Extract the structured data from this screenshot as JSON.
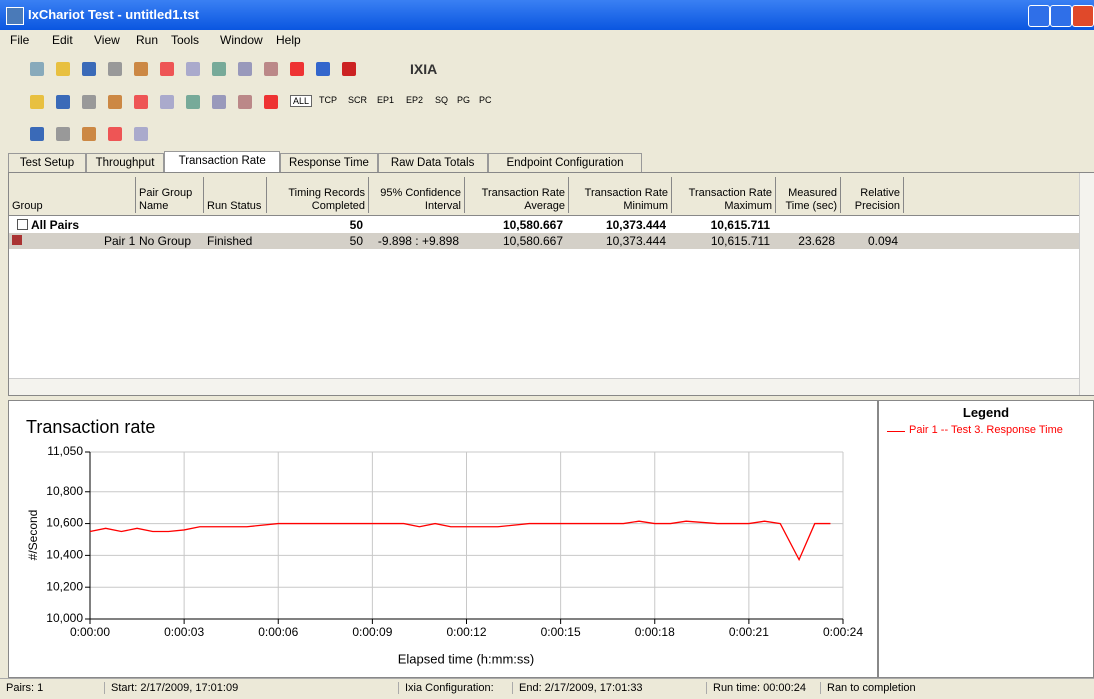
{
  "window": {
    "title": "IxChariot Test - untitled1.tst"
  },
  "menu": [
    "File",
    "Edit",
    "View",
    "Run",
    "Tools",
    "Window",
    "Help"
  ],
  "toolbar": {
    "logo": "IXIA",
    "filters": [
      "ALL",
      "TCP",
      "SCR",
      "EP1",
      "EP2",
      "SQ",
      "PG",
      "PC"
    ]
  },
  "tabs": [
    "Test Setup",
    "Throughput",
    "Transaction Rate",
    "Response Time",
    "Raw Data Totals",
    "Endpoint Configuration"
  ],
  "table": {
    "columns": [
      "Group",
      "Pair Group Name",
      "Run Status",
      "Timing Records Completed",
      "95% Confidence Interval",
      "Transaction Rate Average",
      "Transaction Rate Minimum",
      "Transaction Rate Maximum",
      "Measured Time (sec)",
      "Relative Precision"
    ],
    "rows": [
      {
        "group": "All Pairs",
        "records": "50",
        "average": "10,580.667",
        "minimum": "10,373.444",
        "maximum": "10,615.711"
      },
      {
        "group": "Pair 1",
        "pair_group": "No Group",
        "status": "Finished",
        "records": "50",
        "interval": "-9.898 : +9.898",
        "average": "10,580.667",
        "minimum": "10,373.444",
        "maximum": "10,615.711",
        "time": "23.628",
        "precision": "0.094"
      }
    ]
  },
  "chart_data": {
    "type": "line",
    "title": "Transaction rate",
    "x_label": "Elapsed time (h:mm:ss)",
    "y_label": "#/Second",
    "x": [
      0,
      0.5,
      1,
      1.5,
      2,
      2.5,
      3,
      3.5,
      4,
      5,
      6,
      7,
      8,
      9,
      10,
      10.5,
      11,
      11.5,
      12,
      13,
      14,
      15,
      16,
      17,
      17.5,
      18,
      18.5,
      19,
      20,
      21,
      21.5,
      22,
      22.6,
      23.1,
      23.6
    ],
    "series": [
      {
        "name": "Pair 1 -- Test 3. Response Time",
        "color": "#ff0000",
        "values": [
          10550,
          10570,
          10550,
          10570,
          10550,
          10550,
          10560,
          10580,
          10580,
          10580,
          10600,
          10600,
          10600,
          10600,
          10600,
          10580,
          10600,
          10580,
          10580,
          10580,
          10600,
          10600,
          10600,
          10600,
          10615,
          10600,
          10600,
          10615,
          10600,
          10600,
          10615,
          10600,
          10373,
          10600,
          10600
        ]
      }
    ],
    "xlim": [
      0,
      24
    ],
    "xticks": [
      {
        "value": 0,
        "label": "0:00:00"
      },
      {
        "value": 3,
        "label": "0:00:03"
      },
      {
        "value": 6,
        "label": "0:00:06"
      },
      {
        "value": 9,
        "label": "0:00:09"
      },
      {
        "value": 12,
        "label": "0:00:12"
      },
      {
        "value": 15,
        "label": "0:00:15"
      },
      {
        "value": 18,
        "label": "0:00:18"
      },
      {
        "value": 21,
        "label": "0:00:21"
      },
      {
        "value": 24,
        "label": "0:00:24"
      }
    ],
    "ylim": [
      10000,
      11050
    ],
    "yticks": [
      {
        "value": 10000,
        "label": "10,000"
      },
      {
        "value": 10200,
        "label": "10,200"
      },
      {
        "value": 10400,
        "label": "10,400"
      },
      {
        "value": 10600,
        "label": "10,600"
      },
      {
        "value": 10800,
        "label": "10,800"
      },
      {
        "value": 11050,
        "label": "11,050"
      }
    ],
    "grid": true,
    "legend_title": "Legend"
  },
  "status": [
    "Pairs: 1",
    "Start: 2/17/2009, 17:01:09",
    "Ixia Configuration:",
    "End: 2/17/2009, 17:01:33",
    "Run time: 00:00:24",
    "Ran to completion"
  ]
}
